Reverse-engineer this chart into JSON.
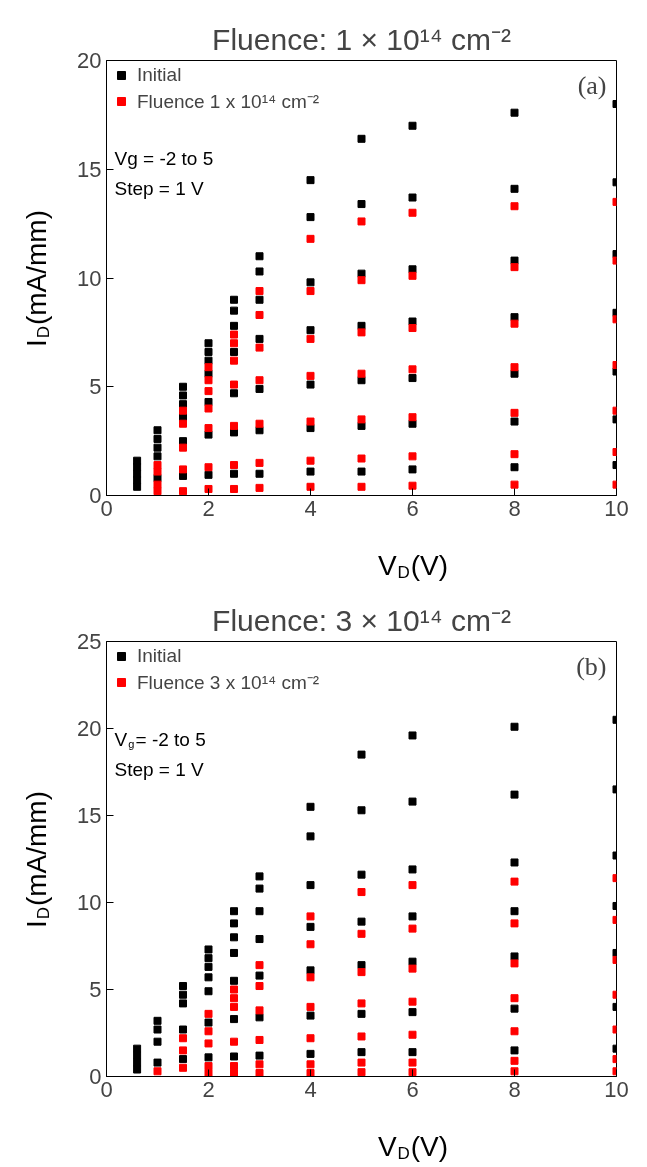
{
  "chart_data": [
    {
      "type": "scatter",
      "title": "Fluence: 1 × 10¹⁴ cm⁻²",
      "xlabel": "V$_{D}$(V)",
      "ylabel": "I$_{D}$(mA/mm)",
      "marker": "square",
      "legend": "top left",
      "grid": false,
      "xlim": [
        0,
        10
      ],
      "xticks": [
        0,
        2,
        4,
        6,
        8,
        10
      ],
      "ylim": [
        0,
        20
      ],
      "yticks": [
        0,
        5,
        10,
        15,
        20
      ],
      "annotations": [
        "Vg = -2 to 5",
        "Step = 1 V",
        "(a)"
      ],
      "x": [
        0.6,
        1,
        1.5,
        2,
        2.5,
        3,
        4,
        5,
        6,
        8,
        10
      ],
      "series": [
        {
          "name": "Initial",
          "color": "#000000",
          "values": [
            1.6,
            3.0,
            5.0,
            7.0,
            9.0,
            11.0,
            14.5,
            16.4,
            17.0,
            17.6,
            18.0
          ]
        },
        {
          "color": "#000000",
          "values": [
            null,
            null,
            null,
            6.6,
            8.5,
            10.3,
            12.8,
            13.4,
            13.7,
            14.1,
            14.4
          ]
        },
        {
          "color": "#000000",
          "values": [
            null,
            null,
            4.6,
            6.2,
            7.8,
            9.0,
            9.8,
            10.2,
            10.4,
            10.8,
            11.1
          ]
        },
        {
          "color": "#000000",
          "values": [
            1.3,
            2.6,
            4.2,
            5.6,
            6.6,
            7.2,
            7.6,
            7.8,
            8.0,
            8.2,
            8.4
          ]
        },
        {
          "color": "#000000",
          "values": [
            1.0,
            2.2,
            3.6,
            4.3,
            4.7,
            4.9,
            5.1,
            5.3,
            5.4,
            5.6,
            5.7
          ]
        },
        {
          "color": "#000000",
          "values": [
            0.7,
            1.8,
            2.5,
            2.8,
            2.9,
            3.0,
            3.1,
            3.2,
            3.3,
            3.4,
            3.5
          ]
        },
        {
          "color": "#000000",
          "values": [
            0.4,
            0.8,
            0.9,
            0.95,
            1.0,
            1.0,
            1.1,
            1.1,
            1.2,
            1.3,
            1.4
          ]
        },
        {
          "name": "Fluence 1 x 10¹⁴ cm⁻²",
          "color": "#ff0000",
          "values": [
            null,
            null,
            3.9,
            5.9,
            7.4,
            9.4,
            11.8,
            12.6,
            13.0,
            13.3,
            13.5
          ]
        },
        {
          "color": "#ff0000",
          "values": [
            null,
            null,
            null,
            5.3,
            7.0,
            8.3,
            9.4,
            9.9,
            10.1,
            10.5,
            10.8
          ]
        },
        {
          "color": "#ff0000",
          "values": [
            null,
            1.4,
            3.3,
            4.8,
            6.2,
            6.8,
            7.2,
            7.5,
            7.7,
            7.9,
            8.1
          ]
        },
        {
          "color": "#ff0000",
          "values": [
            null,
            null,
            null,
            4.0,
            5.1,
            5.3,
            5.5,
            5.6,
            5.8,
            5.9,
            6.0
          ]
        },
        {
          "color": "#ff0000",
          "values": [
            null,
            1.1,
            2.2,
            3.1,
            3.2,
            3.3,
            3.4,
            3.5,
            3.6,
            3.8,
            3.9
          ]
        },
        {
          "color": "#ff0000",
          "values": [
            null,
            0.5,
            1.2,
            1.3,
            1.4,
            1.5,
            1.6,
            1.7,
            1.8,
            1.9,
            2.0
          ]
        },
        {
          "color": "#ff0000",
          "values": [
            null,
            0.2,
            0.2,
            0.3,
            0.3,
            0.35,
            0.4,
            0.4,
            0.45,
            0.5,
            0.5
          ]
        }
      ]
    },
    {
      "type": "scatter",
      "title": "Fluence: 3 × 10¹⁴ cm⁻²",
      "xlabel": "V$_{D}$(V)",
      "ylabel": "I$_{D}$(mA/mm)",
      "marker": "square",
      "legend": "top left",
      "grid": false,
      "xlim": [
        0,
        10
      ],
      "xticks": [
        0,
        2,
        4,
        6,
        8,
        10
      ],
      "ylim": [
        0,
        25
      ],
      "yticks": [
        0,
        5,
        10,
        15,
        20,
        25
      ],
      "annotations": [
        "V$_{g}$= -2 to 5",
        "Step = 1 V",
        "(b)"
      ],
      "x": [
        0.6,
        1,
        1.5,
        2,
        2.5,
        3,
        4,
        5,
        6,
        8,
        10
      ],
      "series": [
        {
          "name": "Initial",
          "color": "#000000",
          "values": [
            1.6,
            3.2,
            5.2,
            7.3,
            9.5,
            11.5,
            15.5,
            18.5,
            19.6,
            20.1,
            20.5
          ]
        },
        {
          "color": "#000000",
          "values": [
            null,
            null,
            null,
            6.8,
            8.8,
            10.8,
            13.8,
            15.3,
            15.8,
            16.2,
            16.5
          ]
        },
        {
          "color": "#000000",
          "values": [
            null,
            null,
            4.7,
            6.3,
            8.0,
            9.5,
            11.0,
            11.6,
            11.9,
            12.3,
            12.7
          ]
        },
        {
          "color": "#000000",
          "values": [
            1.2,
            2.7,
            4.2,
            5.7,
            7.1,
            7.9,
            8.6,
            8.9,
            9.2,
            9.5,
            9.8
          ]
        },
        {
          "color": "#000000",
          "values": [
            null,
            null,
            null,
            4.9,
            5.5,
            5.8,
            6.1,
            6.4,
            6.6,
            6.9,
            7.1
          ]
        },
        {
          "color": "#000000",
          "values": [
            0.8,
            2.0,
            2.7,
            3.1,
            3.3,
            3.4,
            3.5,
            3.6,
            3.7,
            3.9,
            4.0
          ]
        },
        {
          "color": "#000000",
          "values": [
            0.4,
            0.8,
            1.0,
            1.1,
            1.15,
            1.2,
            1.3,
            1.4,
            1.4,
            1.5,
            1.6
          ]
        },
        {
          "name": "Fluence 3 x 10¹⁴ cm⁻²",
          "color": "#ff0000",
          "values": [
            null,
            null,
            null,
            3.6,
            5.0,
            6.4,
            9.2,
            10.6,
            11.0,
            11.2,
            11.4
          ]
        },
        {
          "color": "#ff0000",
          "values": [
            null,
            null,
            2.2,
            null,
            4.5,
            null,
            7.6,
            8.2,
            8.5,
            8.8,
            9.0
          ]
        },
        {
          "color": "#ff0000",
          "values": [
            null,
            null,
            null,
            null,
            4.0,
            5.2,
            5.7,
            6.0,
            6.2,
            6.5,
            6.7
          ]
        },
        {
          "color": "#ff0000",
          "values": [
            null,
            null,
            null,
            2.6,
            null,
            3.8,
            4.0,
            4.2,
            4.3,
            4.5,
            4.7
          ]
        },
        {
          "color": "#ff0000",
          "values": [
            null,
            null,
            1.5,
            1.9,
            2.0,
            2.1,
            2.2,
            2.3,
            2.4,
            2.6,
            2.7
          ]
        },
        {
          "color": "#ff0000",
          "values": [
            null,
            0.3,
            0.5,
            0.6,
            0.6,
            0.7,
            0.7,
            0.8,
            0.8,
            0.9,
            1.0
          ]
        },
        {
          "color": "#ff0000",
          "values": [
            null,
            null,
            null,
            0.2,
            0.2,
            0.2,
            0.2,
            0.25,
            0.25,
            0.3,
            0.3
          ]
        }
      ]
    }
  ]
}
